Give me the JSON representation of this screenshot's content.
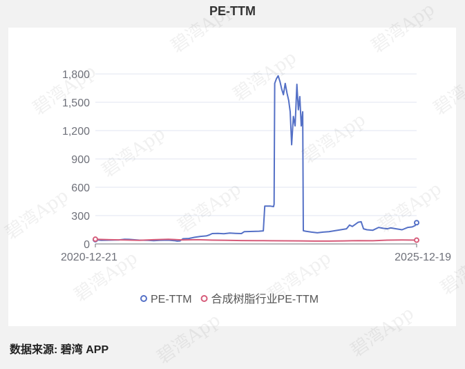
{
  "title": "PE-TTM",
  "source": "数据来源: 碧湾 APP",
  "watermark": "碧湾App",
  "chart_data": {
    "type": "line",
    "title": "PE-TTM",
    "x_start_label": "2020-12-21",
    "x_end_label": "2025-12-19",
    "ylim": [
      0,
      1800
    ],
    "yticks": [
      0,
      300,
      600,
      900,
      1200,
      1500,
      1800
    ],
    "ytick_labels": [
      "0",
      "300",
      "600",
      "900",
      "1,200",
      "1,500",
      "1,800"
    ],
    "grid": true,
    "legend_position": "bottom-center",
    "series": [
      {
        "name": "PE-TTM",
        "color": "#5470c6",
        "points": [
          [
            0.0,
            45
          ],
          [
            0.02,
            38
          ],
          [
            0.05,
            40
          ],
          [
            0.08,
            42
          ],
          [
            0.1,
            50
          ],
          [
            0.115,
            48
          ],
          [
            0.13,
            45
          ],
          [
            0.15,
            40
          ],
          [
            0.18,
            38
          ],
          [
            0.2,
            35
          ],
          [
            0.22,
            38
          ],
          [
            0.25,
            40
          ],
          [
            0.27,
            35
          ],
          [
            0.28,
            30
          ],
          [
            0.29,
            32
          ],
          [
            0.3,
            55
          ],
          [
            0.32,
            58
          ],
          [
            0.34,
            70
          ],
          [
            0.36,
            80
          ],
          [
            0.38,
            85
          ],
          [
            0.39,
            95
          ],
          [
            0.4,
            110
          ],
          [
            0.42,
            112
          ],
          [
            0.44,
            108
          ],
          [
            0.46,
            115
          ],
          [
            0.48,
            112
          ],
          [
            0.5,
            110
          ],
          [
            0.51,
            130
          ],
          [
            0.53,
            132
          ],
          [
            0.56,
            135
          ],
          [
            0.575,
            138
          ],
          [
            0.58,
            400
          ],
          [
            0.6,
            400
          ],
          [
            0.61,
            395
          ],
          [
            0.612,
            420
          ],
          [
            0.614,
            1700
          ],
          [
            0.62,
            1750
          ],
          [
            0.626,
            1780
          ],
          [
            0.632,
            1720
          ],
          [
            0.638,
            1640
          ],
          [
            0.644,
            1580
          ],
          [
            0.65,
            1700
          ],
          [
            0.656,
            1600
          ],
          [
            0.662,
            1520
          ],
          [
            0.667,
            1400
          ],
          [
            0.672,
            1050
          ],
          [
            0.678,
            1350
          ],
          [
            0.684,
            1250
          ],
          [
            0.69,
            1690
          ],
          [
            0.695,
            1420
          ],
          [
            0.7,
            1560
          ],
          [
            0.705,
            1250
          ],
          [
            0.71,
            1400
          ],
          [
            0.712,
            140
          ],
          [
            0.72,
            135
          ],
          [
            0.74,
            125
          ],
          [
            0.76,
            118
          ],
          [
            0.78,
            125
          ],
          [
            0.8,
            130
          ],
          [
            0.82,
            140
          ],
          [
            0.84,
            150
          ],
          [
            0.86,
            160
          ],
          [
            0.87,
            200
          ],
          [
            0.88,
            185
          ],
          [
            0.9,
            230
          ],
          [
            0.91,
            235
          ],
          [
            0.918,
            160
          ],
          [
            0.93,
            150
          ],
          [
            0.95,
            145
          ],
          [
            0.97,
            175
          ],
          [
            0.985,
            165
          ],
          [
            1.0,
            160
          ],
          [
            1.01,
            170
          ],
          [
            1.03,
            160
          ],
          [
            1.05,
            150
          ],
          [
            1.07,
            175
          ],
          [
            1.085,
            180
          ],
          [
            1.095,
            195
          ],
          [
            1.1,
            225
          ]
        ]
      },
      {
        "name": "合成树脂行业PE-TTM",
        "color": "#d65c7a",
        "points": [
          [
            0.0,
            50
          ],
          [
            0.05,
            45
          ],
          [
            0.1,
            42
          ],
          [
            0.15,
            38
          ],
          [
            0.2,
            45
          ],
          [
            0.25,
            50
          ],
          [
            0.3,
            42
          ],
          [
            0.35,
            45
          ],
          [
            0.4,
            40
          ],
          [
            0.45,
            38
          ],
          [
            0.5,
            36
          ],
          [
            0.55,
            35
          ],
          [
            0.6,
            34
          ],
          [
            0.65,
            33
          ],
          [
            0.7,
            32
          ],
          [
            0.75,
            30
          ],
          [
            0.8,
            30
          ],
          [
            0.85,
            32
          ],
          [
            0.9,
            35
          ],
          [
            0.95,
            34
          ],
          [
            1.0,
            40
          ],
          [
            1.05,
            42
          ],
          [
            1.1,
            40
          ]
        ]
      }
    ]
  }
}
